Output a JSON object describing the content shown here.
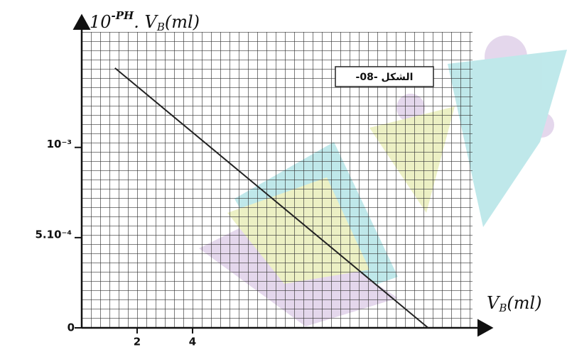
{
  "chart_data": {
    "type": "line",
    "ylabel": [
      "10",
      "-PH",
      ". V",
      "B",
      "(ml)"
    ],
    "xlabel": [
      "V",
      "B",
      "(ml)"
    ],
    "annotation": "الشكل -08-",
    "x": [
      1.2,
      12.5
    ],
    "series": [
      {
        "color": "#222222",
        "values": [
          0.00144,
          0
        ]
      }
    ],
    "xlim": [
      0,
      14.1
    ],
    "ylim": [
      0,
      0.00164
    ],
    "xticks": [
      2,
      4
    ],
    "yticks": [
      {
        "value": 0,
        "label": "0"
      },
      {
        "value": 0.0005,
        "label": "5.10⁻⁴"
      },
      {
        "value": 0.001,
        "label": "10⁻³"
      }
    ],
    "grid": true
  }
}
